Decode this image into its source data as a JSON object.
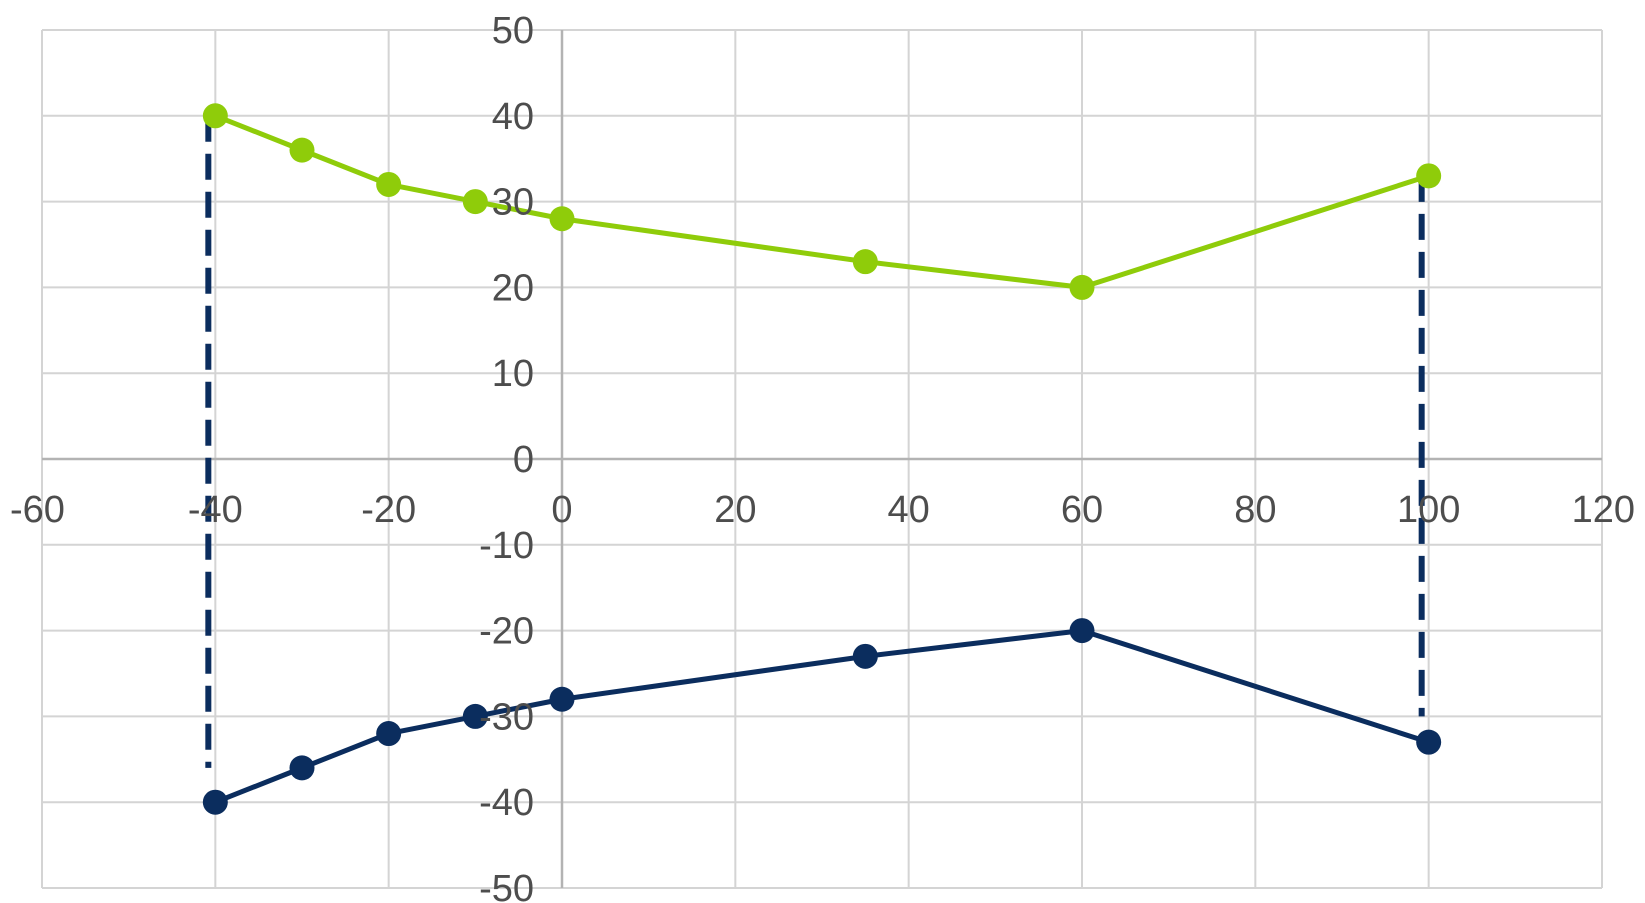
{
  "chart_data": {
    "type": "scatter",
    "title": "",
    "xlabel": "",
    "ylabel": "",
    "xlim": [
      -60,
      120
    ],
    "ylim": [
      -50,
      50
    ],
    "x_ticks": [
      -60,
      -40,
      -20,
      0,
      20,
      40,
      60,
      80,
      100,
      120
    ],
    "y_ticks": [
      50,
      40,
      30,
      20,
      10,
      0,
      -10,
      -20,
      -30,
      -40,
      -50
    ],
    "x_tick_labels": [
      "-60",
      "-40",
      "-20",
      "0",
      "20",
      "40",
      "60",
      "80",
      "100",
      "120"
    ],
    "y_tick_labels": [
      "50",
      "40",
      "30",
      "20",
      "10",
      "0",
      "-10",
      "-20",
      "-30",
      "-40",
      "-50"
    ],
    "grid": true,
    "legend": "none",
    "series": [
      {
        "color": "#8fcc0a",
        "marker": "circle",
        "points": [
          {
            "x": -40,
            "y": 40
          },
          {
            "x": -30,
            "y": 36
          },
          {
            "x": -20,
            "y": 32
          },
          {
            "x": -10,
            "y": 30
          },
          {
            "x": 0,
            "y": 28
          },
          {
            "x": 35,
            "y": 23
          },
          {
            "x": 60,
            "y": 20
          },
          {
            "x": 100,
            "y": 33
          }
        ]
      },
      {
        "color": "#0b2d5e",
        "marker": "circle",
        "points": [
          {
            "x": -40,
            "y": -40
          },
          {
            "x": -30,
            "y": -36
          },
          {
            "x": -20,
            "y": -32
          },
          {
            "x": -10,
            "y": -30
          },
          {
            "x": 0,
            "y": -28
          },
          {
            "x": 35,
            "y": -23
          },
          {
            "x": 60,
            "y": -20
          },
          {
            "x": 100,
            "y": -33
          }
        ]
      }
    ],
    "drop_lines": [
      {
        "x": -40,
        "y_from": 40,
        "y_to": -36,
        "color": "#0b2d5e",
        "style": "dashed"
      },
      {
        "x": 100,
        "y_from": 33,
        "y_to": -30,
        "color": "#0b2d5e",
        "style": "dashed"
      }
    ]
  }
}
